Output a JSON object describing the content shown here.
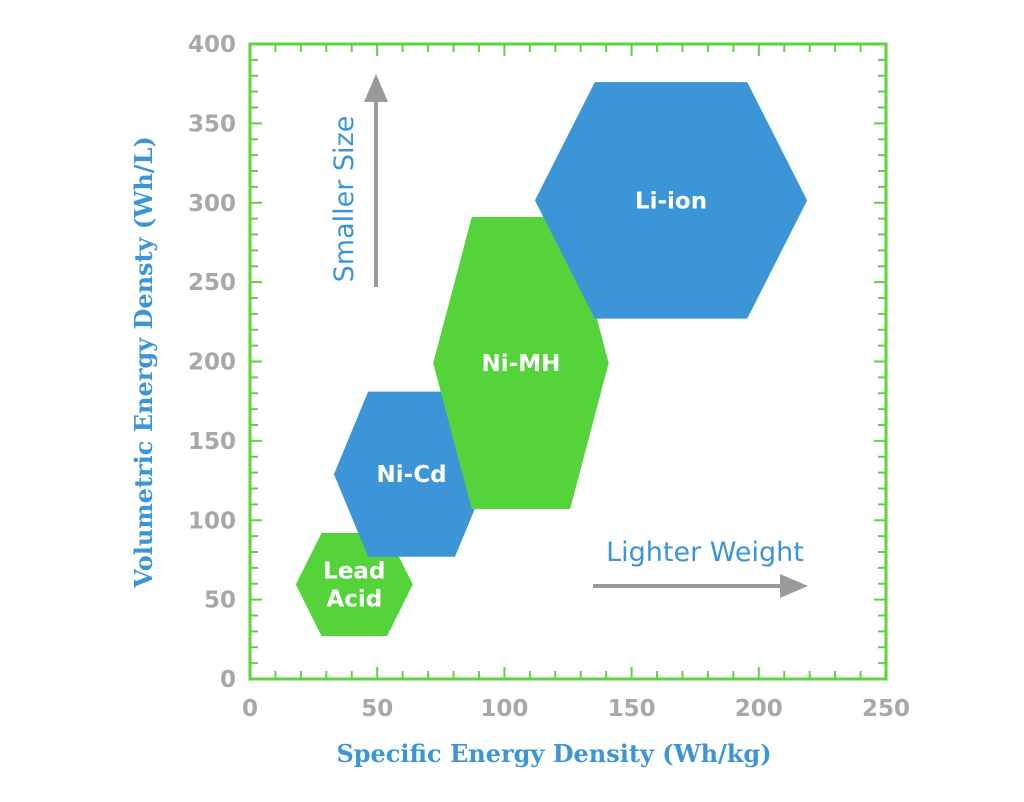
{
  "chart_data": {
    "type": "scatter",
    "xlabel": "Specific Energy Density (Wh/kg)",
    "ylabel": "Volumetric Energy Densty (Wh/L)",
    "xlim": [
      0,
      250
    ],
    "ylim": [
      0,
      400
    ],
    "x_ticks": [
      0,
      50,
      100,
      150,
      200,
      250
    ],
    "y_ticks": [
      0,
      50,
      100,
      150,
      200,
      250,
      300,
      350,
      400
    ],
    "grid": false,
    "regions": [
      {
        "label_lines": [
          "Lead",
          "Acid"
        ],
        "x_range": [
          18,
          64
        ],
        "y_range": [
          27,
          92
        ],
        "color": "#55d33b"
      },
      {
        "label_lines": [
          "Ni-Cd"
        ],
        "x_range": [
          33,
          94
        ],
        "y_range": [
          77,
          181
        ],
        "color": "#3b95d6"
      },
      {
        "label_lines": [
          "Ni-MH"
        ],
        "x_range": [
          72,
          141
        ],
        "y_range": [
          107,
          291
        ],
        "color": "#55d33b"
      },
      {
        "label_lines": [
          "Li-ion"
        ],
        "x_range": [
          112,
          219
        ],
        "y_range": [
          227,
          376
        ],
        "color": "#3b95d6"
      }
    ],
    "annotations": [
      {
        "text": "Smaller Size",
        "direction": "up"
      },
      {
        "text": "Lighter Weight",
        "direction": "right"
      }
    ],
    "colors": {
      "frame": "#5fd33c",
      "tick_text": "#a8a8a8",
      "axis_title": "#3b95d6",
      "arrow": "#9a9a9a"
    }
  }
}
